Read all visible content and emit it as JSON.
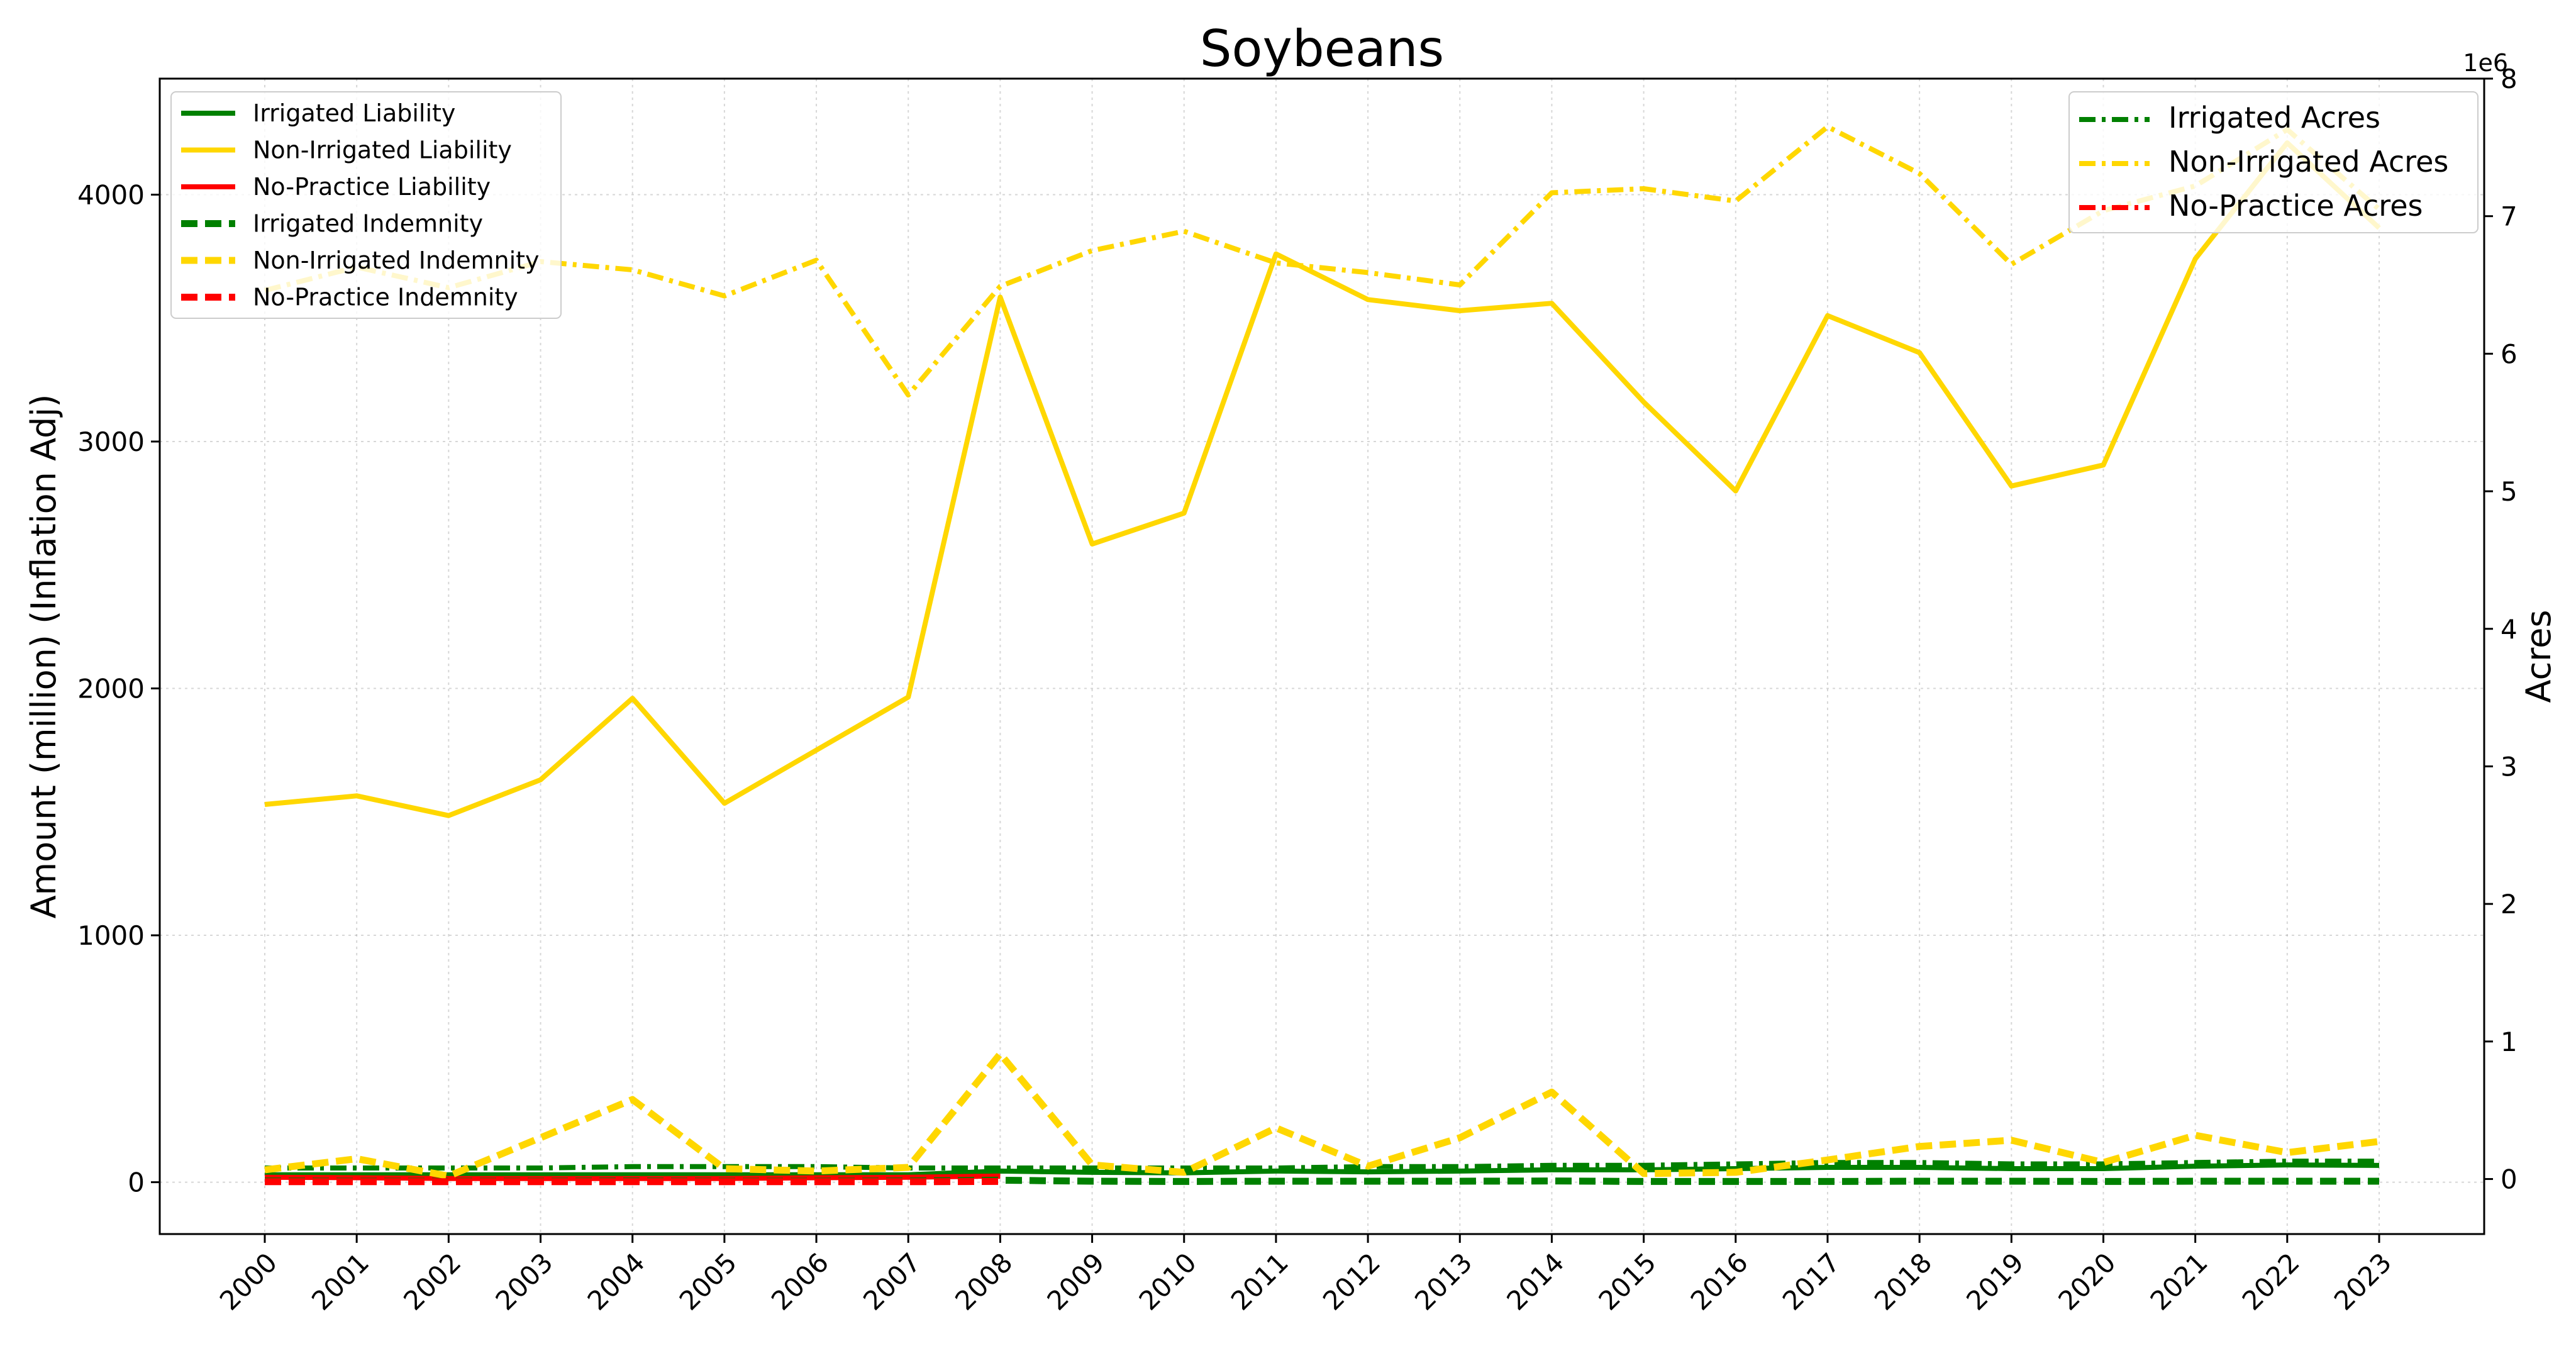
{
  "chart_data": {
    "type": "line",
    "title": "Soybeans",
    "ylabel": "Amount (million) (Inflation Adj)",
    "y2label": "Acres",
    "y2_offset_text": "1e6",
    "x": [
      "2000",
      "2001",
      "2002",
      "2003",
      "2004",
      "2005",
      "2006",
      "2007",
      "2008",
      "2009",
      "2010",
      "2011",
      "2012",
      "2013",
      "2014",
      "2015",
      "2016",
      "2017",
      "2018",
      "2019",
      "2020",
      "2021",
      "2022",
      "2023"
    ],
    "ylim": [
      -210,
      4470
    ],
    "y2lim": [
      -0.4,
      8.0
    ],
    "yticks": [
      0,
      1000,
      2000,
      3000,
      4000
    ],
    "y2ticks": [
      0,
      1,
      2,
      3,
      4,
      5,
      6,
      7,
      8
    ],
    "grid": true,
    "legend_left_position": "upper-left",
    "legend_right_position": "upper-right",
    "colors": {
      "green": "#008000",
      "gold": "#ffd700",
      "red": "#ff0000"
    },
    "series_left": [
      {
        "name": "Irrigated Liability",
        "color": "#008000",
        "style": "solid",
        "x": [
          "2000",
          "2001",
          "2002",
          "2003",
          "2004",
          "2005",
          "2006",
          "2007",
          "2008",
          "2009",
          "2010",
          "2011",
          "2012",
          "2013",
          "2014",
          "2015",
          "2016",
          "2017",
          "2018",
          "2019",
          "2020",
          "2021",
          "2022",
          "2023"
        ],
        "values": [
          30,
          30,
          30,
          30,
          30,
          30,
          30,
          30,
          45,
          40,
          38,
          45,
          42,
          45,
          50,
          50,
          55,
          60,
          60,
          55,
          55,
          65,
          70,
          68
        ]
      },
      {
        "name": "Non-Irrigated Liability",
        "color": "#ffd700",
        "style": "solid",
        "x": [
          "2000",
          "2001",
          "2002",
          "2003",
          "2004",
          "2005",
          "2006",
          "2007",
          "2008",
          "2009",
          "2010",
          "2011",
          "2012",
          "2013",
          "2014",
          "2015",
          "2016",
          "2017",
          "2018",
          "2019",
          "2020",
          "2021",
          "2022",
          "2023"
        ],
        "values": [
          1530,
          1565,
          1485,
          1630,
          1960,
          1535,
          1750,
          1965,
          3585,
          2585,
          2710,
          3760,
          3575,
          3530,
          3560,
          3160,
          2800,
          3510,
          3360,
          2820,
          2905,
          3740,
          4210,
          3865
        ]
      },
      {
        "name": "No-Practice Liability",
        "color": "#ff0000",
        "style": "solid",
        "x": [
          "2000",
          "2001",
          "2002",
          "2003",
          "2004",
          "2005",
          "2006",
          "2007",
          "2008"
        ],
        "values": [
          20,
          18,
          15,
          15,
          15,
          15,
          18,
          20,
          25
        ]
      },
      {
        "name": "Irrigated Indemnity",
        "color": "#008000",
        "style": "dashed",
        "x": [
          "2000",
          "2001",
          "2002",
          "2003",
          "2004",
          "2005",
          "2006",
          "2007",
          "2008",
          "2009",
          "2010",
          "2011",
          "2012",
          "2013",
          "2014",
          "2015",
          "2016",
          "2017",
          "2018",
          "2019",
          "2020",
          "2021",
          "2022",
          "2023"
        ],
        "values": [
          5,
          4,
          4,
          4,
          5,
          4,
          4,
          5,
          8,
          4,
          3,
          4,
          4,
          4,
          5,
          3,
          3,
          3,
          4,
          4,
          3,
          4,
          4,
          4
        ]
      },
      {
        "name": "Non-Irrigated Indemnity",
        "color": "#ffd700",
        "style": "dashed",
        "x": [
          "2000",
          "2001",
          "2002",
          "2003",
          "2004",
          "2005",
          "2006",
          "2007",
          "2008",
          "2009",
          "2010",
          "2011",
          "2012",
          "2013",
          "2014",
          "2015",
          "2016",
          "2017",
          "2018",
          "2019",
          "2020",
          "2021",
          "2022",
          "2023"
        ],
        "values": [
          50,
          95,
          25,
          180,
          335,
          55,
          45,
          60,
          520,
          70,
          40,
          220,
          65,
          180,
          365,
          35,
          40,
          90,
          145,
          170,
          80,
          190,
          120,
          165
        ]
      },
      {
        "name": "No-Practice Indemnity",
        "color": "#ff0000",
        "style": "dashed",
        "x": [
          "2000",
          "2001",
          "2002",
          "2003",
          "2004",
          "2005",
          "2006",
          "2007",
          "2008"
        ],
        "values": [
          2,
          2,
          2,
          2,
          2,
          2,
          2,
          2,
          3
        ]
      }
    ],
    "series_right": [
      {
        "name": "Irrigated Acres",
        "color": "#008000",
        "style": "dashdot",
        "x": [
          "2000",
          "2001",
          "2002",
          "2003",
          "2004",
          "2005",
          "2006",
          "2007",
          "2008",
          "2009",
          "2010",
          "2011",
          "2012",
          "2013",
          "2014",
          "2015",
          "2016",
          "2017",
          "2018",
          "2019",
          "2020",
          "2021",
          "2022",
          "2023"
        ],
        "values": [
          0.08,
          0.08,
          0.08,
          0.08,
          0.09,
          0.09,
          0.09,
          0.08,
          0.08,
          0.08,
          0.08,
          0.08,
          0.09,
          0.09,
          0.1,
          0.1,
          0.11,
          0.12,
          0.12,
          0.11,
          0.11,
          0.12,
          0.13,
          0.13
        ]
      },
      {
        "name": "Non-Irrigated Acres",
        "color": "#ffd700",
        "style": "dashdot",
        "x": [
          "2000",
          "2001",
          "2002",
          "2003",
          "2004",
          "2005",
          "2006",
          "2007",
          "2008",
          "2009",
          "2010",
          "2011",
          "2012",
          "2013",
          "2014",
          "2015",
          "2016",
          "2017",
          "2018",
          "2019",
          "2020",
          "2021",
          "2022",
          "2023"
        ],
        "values": [
          6.46,
          6.63,
          6.48,
          6.67,
          6.61,
          6.42,
          6.68,
          5.7,
          6.49,
          6.75,
          6.89,
          6.66,
          6.59,
          6.5,
          7.17,
          7.2,
          7.11,
          7.65,
          7.31,
          6.65,
          7.04,
          7.22,
          7.63,
          7.05
        ]
      },
      {
        "name": "No-Practice Acres",
        "color": "#ff0000",
        "style": "dashdot",
        "x": [
          "2000",
          "2001",
          "2002",
          "2003",
          "2004",
          "2005",
          "2006",
          "2007",
          "2008"
        ],
        "values": [
          0.02,
          0.02,
          0.02,
          0.02,
          0.02,
          0.02,
          0.02,
          0.02,
          0.02
        ]
      }
    ]
  }
}
